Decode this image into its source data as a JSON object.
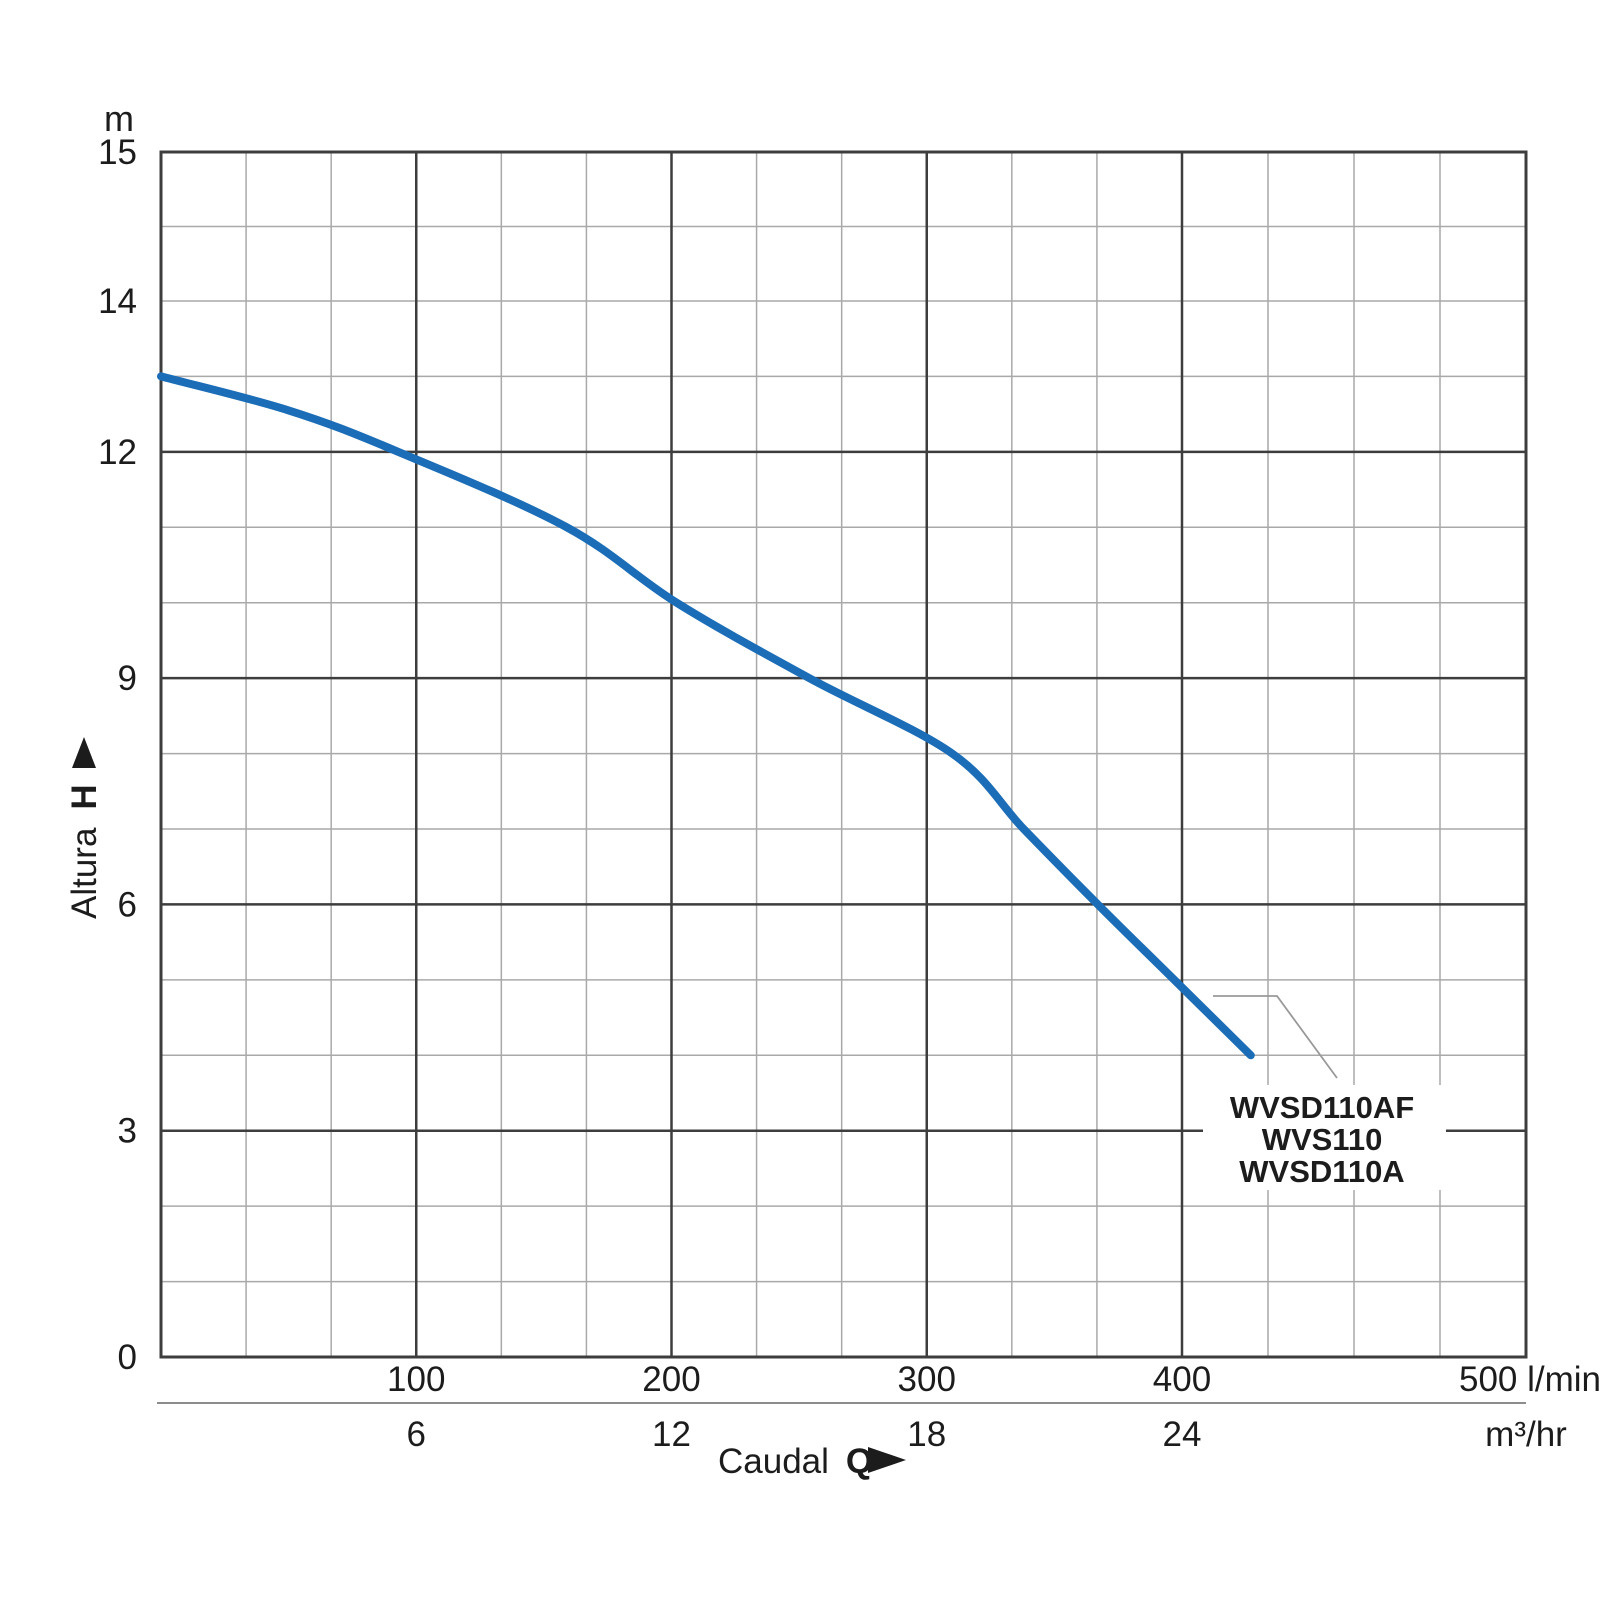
{
  "colors": {
    "background": "#ffffff",
    "curve": "#1c6db7",
    "grid_light": "#a9a9a9",
    "grid_dark": "#3d3d3d",
    "frame": "#3d3d3d",
    "text": "#1c1c1c",
    "leader": "#999999",
    "separator": "#8c8c8c"
  },
  "y_axis": {
    "unit": "m",
    "title": "Altura",
    "title_bold": "H",
    "ticks": [
      {
        "value": 15,
        "label": "15"
      },
      {
        "value": 14,
        "label": "14"
      },
      {
        "value": 12,
        "label": "12"
      },
      {
        "value": 9,
        "label": "9"
      },
      {
        "value": 6,
        "label": "6"
      },
      {
        "value": 3,
        "label": "3"
      },
      {
        "value": 0,
        "label": "0"
      }
    ]
  },
  "x_axis": {
    "title": "Caudal",
    "title_bold": "Q",
    "ticks": [
      {
        "value": 100,
        "label": "100"
      },
      {
        "value": 200,
        "label": "200"
      },
      {
        "value": 300,
        "label": "300"
      },
      {
        "value": 400,
        "label": "400"
      },
      {
        "value": 500,
        "label": "500 l/min"
      }
    ]
  },
  "x2_axis": {
    "unit": "m³/hr",
    "ticks": [
      {
        "value": 6,
        "label": "6"
      },
      {
        "value": 12,
        "label": "12"
      },
      {
        "value": 18,
        "label": "18"
      },
      {
        "value": 24,
        "label": "24"
      }
    ]
  },
  "series_labels": [
    "WVSD110AF",
    "WVS110",
    "WVSD110A"
  ],
  "chart_data": {
    "type": "line",
    "title": "",
    "xlabel": "Caudal Q",
    "ylabel": "Altura H",
    "x_unit_primary": "l/min",
    "x_unit_secondary": "m³/hr",
    "y_unit": "m",
    "xlim": [
      0,
      500
    ],
    "ylim": [
      0,
      15
    ],
    "grid": "on",
    "x2_scale": "1 m³/hr = 16.667 l/min",
    "y_grid_dark": [
      3,
      6,
      9,
      12
    ],
    "y_grid_light": [
      1,
      2,
      4,
      5,
      7,
      8,
      10,
      11,
      13,
      14,
      14.5
    ],
    "x_grid_dark": [
      100,
      200,
      300,
      400
    ],
    "x_grid_light": [
      33.33,
      66.67,
      133.33,
      166.67,
      233.33,
      266.67,
      333.33,
      366.67,
      425,
      450,
      475
    ],
    "series": [
      {
        "name": "WVSD110AF / WVS110 / WVSD110A",
        "points_q_lmin_h_m": [
          [
            0,
            13.0
          ],
          [
            50,
            12.55
          ],
          [
            93,
            12.0
          ],
          [
            159,
            11.0
          ],
          [
            202,
            10.0
          ],
          [
            254,
            9.0
          ],
          [
            310,
            8.0
          ],
          [
            338,
            7.0
          ],
          [
            367,
            6.0
          ],
          [
            397,
            5.0
          ],
          [
            420,
            4.0
          ]
        ]
      }
    ]
  }
}
